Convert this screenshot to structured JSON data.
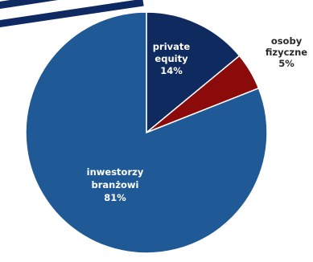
{
  "chart_data": {
    "type": "pie",
    "slices": [
      {
        "label_lines": [
          "private",
          "equity"
        ],
        "value_label": "14%",
        "value": 14,
        "color": "#0e2a5e",
        "label_color": "#ffffff"
      },
      {
        "label_lines": [
          "osoby",
          "fizyczne"
        ],
        "value_label": "5%",
        "value": 5,
        "color": "#8b0a0a",
        "label_color": "#2a2a2a"
      },
      {
        "label_lines": [
          "inwestorzy",
          "branżowi"
        ],
        "value_label": "81%",
        "value": 81,
        "color": "#1f5a97",
        "label_color": "#ffffff"
      }
    ],
    "start_angle_deg": 0,
    "direction": "clockwise"
  },
  "decoration": {
    "stripe_colors": [
      "#0f2a63",
      "#ffffff",
      "#0f2a63"
    ]
  }
}
